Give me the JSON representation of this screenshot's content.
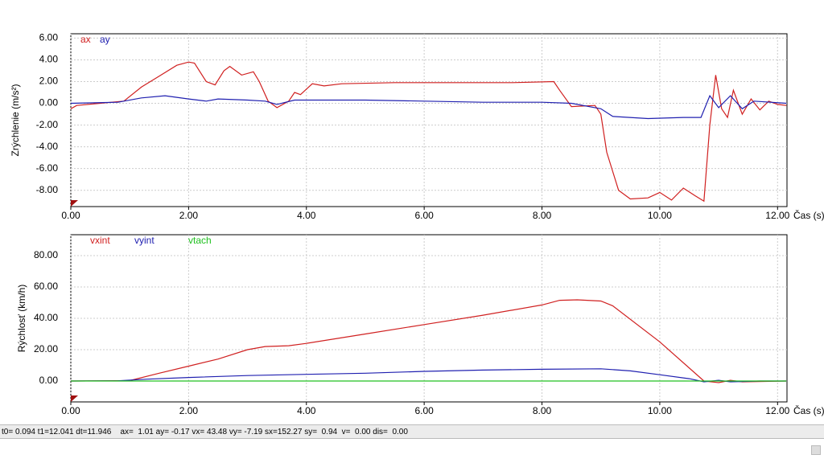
{
  "chart_data": [
    {
      "type": "line",
      "y_label": "Zrýchlenie  (m/s²)",
      "x_label": "Čas (s)",
      "grid": true,
      "xlim": [
        0,
        12.16
      ],
      "ylim": [
        -9.5,
        6.4
      ],
      "xticks": [
        {
          "value": 0,
          "label": "0.00"
        },
        {
          "value": 2,
          "label": "2.00"
        },
        {
          "value": 4,
          "label": "4.00"
        },
        {
          "value": 6,
          "label": "6.00"
        },
        {
          "value": 8,
          "label": "8.00"
        },
        {
          "value": 10,
          "label": "10.00"
        },
        {
          "value": 12,
          "label": "12.00"
        }
      ],
      "yticks": [
        {
          "value": 6,
          "label": "6.00"
        },
        {
          "value": 4,
          "label": "4.00"
        },
        {
          "value": 2,
          "label": "2.00"
        },
        {
          "value": 0,
          "label": "0.00"
        },
        {
          "value": -2,
          "label": "-2.00"
        },
        {
          "value": -4,
          "label": "-4.00"
        },
        {
          "value": -6,
          "label": "-6.00"
        },
        {
          "value": -8,
          "label": "-8.00"
        }
      ],
      "series": [
        {
          "name": "ax",
          "color": "#d02020",
          "x": [
            0,
            0.1,
            0.5,
            0.9,
            1.2,
            1.5,
            1.8,
            2.0,
            2.1,
            2.3,
            2.45,
            2.6,
            2.7,
            2.9,
            3.1,
            3.2,
            3.35,
            3.5,
            3.7,
            3.8,
            3.9,
            4.1,
            4.3,
            4.6,
            5.5,
            6.5,
            7.5,
            8.2,
            8.3,
            8.5,
            8.9,
            9.0,
            9.1,
            9.3,
            9.5,
            9.8,
            10.0,
            10.2,
            10.4,
            10.6,
            10.75,
            10.85,
            10.95,
            11.05,
            11.15,
            11.25,
            11.4,
            11.55,
            11.7,
            11.85,
            12.0,
            12.15
          ],
          "values": [
            -0.5,
            -0.2,
            0,
            0.2,
            1.5,
            2.5,
            3.5,
            3.8,
            3.7,
            2.0,
            1.7,
            3.0,
            3.4,
            2.6,
            2.9,
            2.0,
            0.2,
            -0.4,
            0.2,
            1.0,
            0.8,
            1.8,
            1.6,
            1.8,
            1.9,
            1.9,
            1.9,
            2.0,
            1.2,
            -0.3,
            -0.2,
            -1.0,
            -4.5,
            -8.0,
            -8.8,
            -8.7,
            -8.2,
            -8.9,
            -7.8,
            -8.5,
            -9.0,
            -2.0,
            2.6,
            -0.5,
            -1.3,
            1.2,
            -1.0,
            0.4,
            -0.6,
            0.2,
            -0.1,
            -0.2
          ]
        },
        {
          "name": "ay",
          "color": "#2020b0",
          "x": [
            0,
            0.8,
            1.2,
            1.6,
            2.0,
            2.3,
            2.5,
            3.0,
            3.3,
            3.5,
            3.8,
            5,
            6,
            7,
            8,
            8.5,
            9.0,
            9.2,
            9.8,
            10.4,
            10.7,
            10.85,
            11.0,
            11.2,
            11.4,
            11.6,
            12.15
          ],
          "values": [
            0,
            0.1,
            0.5,
            0.7,
            0.4,
            0.2,
            0.4,
            0.3,
            0.2,
            -0.1,
            0.3,
            0.3,
            0.2,
            0.1,
            0.1,
            0.0,
            -0.5,
            -1.2,
            -1.4,
            -1.3,
            -1.3,
            0.7,
            -0.4,
            0.7,
            -0.5,
            0.2,
            0.0
          ]
        }
      ]
    },
    {
      "type": "line",
      "y_label": "Rýchlosť (km/h)",
      "x_label": "Čas (s)",
      "grid": true,
      "xlim": [
        0,
        12.16
      ],
      "ylim": [
        -13.3,
        93.3
      ],
      "xticks": [
        {
          "value": 0,
          "label": "0.00"
        },
        {
          "value": 2,
          "label": "2.00"
        },
        {
          "value": 4,
          "label": "4.00"
        },
        {
          "value": 6,
          "label": "6.00"
        },
        {
          "value": 8,
          "label": "8.00"
        },
        {
          "value": 10,
          "label": "10.00"
        },
        {
          "value": 12,
          "label": "12.00"
        }
      ],
      "yticks": [
        {
          "value": 80,
          "label": "80.00"
        },
        {
          "value": 60,
          "label": "60.00"
        },
        {
          "value": 40,
          "label": "40.00"
        },
        {
          "value": 20,
          "label": "20.00"
        },
        {
          "value": 0,
          "label": "0.00"
        }
      ],
      "series": [
        {
          "name": "vxint",
          "color": "#d02020",
          "x": [
            0,
            1.0,
            1.5,
            2.0,
            2.5,
            3.0,
            3.3,
            3.7,
            4,
            5,
            6,
            7,
            8,
            8.3,
            8.6,
            9.0,
            9.2,
            10,
            10.75,
            11.0,
            11.2,
            11.4,
            12.15
          ],
          "values": [
            0,
            0.3,
            5,
            9.5,
            14,
            20,
            22,
            22.5,
            24,
            30,
            36,
            42,
            48.5,
            51.5,
            51.8,
            51,
            48,
            25,
            0,
            -1,
            0.5,
            -0.5,
            0
          ]
        },
        {
          "name": "vyint",
          "color": "#2020b0",
          "x": [
            0,
            0.8,
            1.3,
            2,
            3,
            4,
            5,
            6,
            7,
            8,
            9,
            9.5,
            10,
            10.5,
            10.75,
            11,
            11.2,
            11.7,
            12.15
          ],
          "values": [
            0,
            0.2,
            1.2,
            2.3,
            3.5,
            4.3,
            5,
            6.2,
            7,
            7.5,
            7.8,
            6.5,
            4,
            1.5,
            -0.5,
            0.5,
            -0.5,
            0,
            0
          ]
        },
        {
          "name": "vtach",
          "color": "#20c020",
          "x": [
            0,
            12.15
          ],
          "values": [
            0,
            0
          ]
        }
      ]
    }
  ],
  "status_bar": "t0= 0.094 t1=12.041 dt=11.946    ax=  1.01 ay= -0.17 vx= 43.48 vy= -7.19 sx=152.27 sy=  0.94  v=  0.00 dis=  0.00"
}
